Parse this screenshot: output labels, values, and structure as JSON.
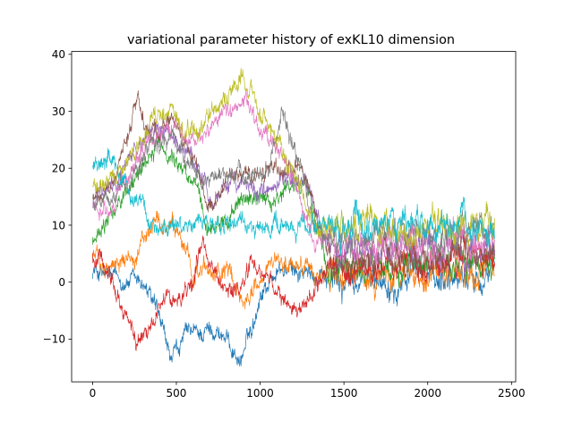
{
  "chart_data": {
    "type": "line",
    "title": "variational parameter history of exKL10 dimension",
    "xlabel": "",
    "ylabel": "",
    "xlim": [
      -125,
      2525
    ],
    "ylim": [
      -17.5,
      40.5
    ],
    "xticks": [
      0,
      500,
      1000,
      1500,
      2000,
      2500
    ],
    "yticks": [
      -10,
      0,
      10,
      20,
      30,
      40
    ],
    "grid": false,
    "legend": "none",
    "n_steps": 2400,
    "series": [
      {
        "color": "#1f77b4",
        "keypoints": [
          [
            0,
            2
          ],
          [
            100,
            1
          ],
          [
            200,
            0
          ],
          [
            300,
            0
          ],
          [
            380,
            -5
          ],
          [
            470,
            -14
          ],
          [
            560,
            -9
          ],
          [
            650,
            -9
          ],
          [
            720,
            -8
          ],
          [
            800,
            -10
          ],
          [
            880,
            -14
          ],
          [
            960,
            -7
          ],
          [
            1000,
            -2
          ],
          [
            1100,
            2
          ],
          [
            1200,
            2
          ],
          [
            1300,
            1
          ],
          [
            1380,
            2
          ],
          [
            1450,
            0
          ],
          [
            1600,
            0
          ],
          [
            1800,
            1
          ],
          [
            2000,
            1
          ],
          [
            2200,
            1
          ],
          [
            2400,
            2
          ]
        ]
      },
      {
        "color": "#ff7f0e",
        "keypoints": [
          [
            0,
            5
          ],
          [
            80,
            3
          ],
          [
            150,
            3
          ],
          [
            250,
            5
          ],
          [
            320,
            8
          ],
          [
            400,
            10
          ],
          [
            480,
            9
          ],
          [
            560,
            5
          ],
          [
            600,
            2
          ],
          [
            700,
            2
          ],
          [
            800,
            2
          ],
          [
            900,
            -3
          ],
          [
            970,
            -1
          ],
          [
            1050,
            3
          ],
          [
            1150,
            3
          ],
          [
            1250,
            3
          ],
          [
            1320,
            2
          ],
          [
            1400,
            1
          ],
          [
            1600,
            1
          ],
          [
            1800,
            2
          ],
          [
            2000,
            2
          ],
          [
            2200,
            2
          ],
          [
            2400,
            1
          ]
        ]
      },
      {
        "color": "#2ca02c",
        "keypoints": [
          [
            0,
            7
          ],
          [
            80,
            10
          ],
          [
            200,
            15
          ],
          [
            300,
            21
          ],
          [
            380,
            24
          ],
          [
            450,
            23
          ],
          [
            550,
            20
          ],
          [
            620,
            17
          ],
          [
            680,
            9
          ],
          [
            750,
            10
          ],
          [
            900,
            14
          ],
          [
            1000,
            15
          ],
          [
            1100,
            14
          ],
          [
            1200,
            17
          ],
          [
            1270,
            18
          ],
          [
            1340,
            10
          ],
          [
            1400,
            3
          ],
          [
            1500,
            2
          ],
          [
            1700,
            3
          ],
          [
            1900,
            3
          ],
          [
            2100,
            3
          ],
          [
            2400,
            3
          ]
        ]
      },
      {
        "color": "#d62728",
        "keypoints": [
          [
            0,
            5
          ],
          [
            100,
            3
          ],
          [
            180,
            -5
          ],
          [
            260,
            -10
          ],
          [
            340,
            -8
          ],
          [
            400,
            -3
          ],
          [
            480,
            -3
          ],
          [
            550,
            -2
          ],
          [
            600,
            0
          ],
          [
            650,
            7
          ],
          [
            700,
            4
          ],
          [
            800,
            -2
          ],
          [
            880,
            -1
          ],
          [
            950,
            3
          ],
          [
            1000,
            2
          ],
          [
            1100,
            -2
          ],
          [
            1200,
            -5
          ],
          [
            1280,
            -4
          ],
          [
            1330,
            -1
          ],
          [
            1400,
            3
          ],
          [
            1600,
            3
          ],
          [
            1800,
            4
          ],
          [
            2000,
            3
          ],
          [
            2200,
            4
          ],
          [
            2400,
            4
          ]
        ]
      },
      {
        "color": "#9467bd",
        "keypoints": [
          [
            0,
            14
          ],
          [
            100,
            16
          ],
          [
            200,
            20
          ],
          [
            300,
            25
          ],
          [
            380,
            27
          ],
          [
            450,
            26
          ],
          [
            520,
            24
          ],
          [
            580,
            22
          ],
          [
            650,
            18
          ],
          [
            720,
            14
          ],
          [
            800,
            18
          ],
          [
            880,
            17
          ],
          [
            960,
            16
          ],
          [
            1050,
            16
          ],
          [
            1150,
            18
          ],
          [
            1250,
            19
          ],
          [
            1330,
            13
          ],
          [
            1400,
            6
          ],
          [
            1600,
            6
          ],
          [
            1800,
            5
          ],
          [
            2000,
            6
          ],
          [
            2200,
            5
          ],
          [
            2400,
            5
          ]
        ]
      },
      {
        "color": "#8c564b",
        "keypoints": [
          [
            0,
            15
          ],
          [
            100,
            16
          ],
          [
            200,
            25
          ],
          [
            270,
            32
          ],
          [
            320,
            26
          ],
          [
            370,
            28
          ],
          [
            430,
            28
          ],
          [
            500,
            28
          ],
          [
            560,
            25
          ],
          [
            620,
            20
          ],
          [
            680,
            14
          ],
          [
            750,
            15
          ],
          [
            820,
            20
          ],
          [
            880,
            19
          ],
          [
            950,
            18
          ],
          [
            1050,
            20
          ],
          [
            1150,
            19
          ],
          [
            1230,
            21
          ],
          [
            1300,
            17
          ],
          [
            1360,
            9
          ],
          [
            1420,
            4
          ],
          [
            1600,
            4
          ],
          [
            1800,
            4
          ],
          [
            2000,
            4
          ],
          [
            2200,
            5
          ],
          [
            2400,
            5
          ]
        ]
      },
      {
        "color": "#e377c2",
        "keypoints": [
          [
            0,
            13
          ],
          [
            100,
            13
          ],
          [
            200,
            18
          ],
          [
            280,
            22
          ],
          [
            340,
            25
          ],
          [
            420,
            27
          ],
          [
            500,
            28
          ],
          [
            560,
            26
          ],
          [
            620,
            25
          ],
          [
            700,
            27
          ],
          [
            780,
            30
          ],
          [
            850,
            31
          ],
          [
            900,
            33
          ],
          [
            950,
            30
          ],
          [
            1000,
            26
          ],
          [
            1100,
            24
          ],
          [
            1200,
            17
          ],
          [
            1250,
            15
          ],
          [
            1290,
            10
          ],
          [
            1330,
            6
          ],
          [
            1400,
            7
          ],
          [
            1600,
            7
          ],
          [
            1800,
            6
          ],
          [
            2000,
            7
          ],
          [
            2200,
            7
          ],
          [
            2400,
            7
          ]
        ]
      },
      {
        "color": "#7f7f7f",
        "keypoints": [
          [
            0,
            14
          ],
          [
            100,
            15
          ],
          [
            200,
            17
          ],
          [
            280,
            20
          ],
          [
            350,
            24
          ],
          [
            430,
            25
          ],
          [
            520,
            23
          ],
          [
            600,
            20
          ],
          [
            660,
            18
          ],
          [
            740,
            19
          ],
          [
            820,
            20
          ],
          [
            900,
            19
          ],
          [
            980,
            18
          ],
          [
            1050,
            20
          ],
          [
            1100,
            26
          ],
          [
            1130,
            31
          ],
          [
            1180,
            25
          ],
          [
            1250,
            19
          ],
          [
            1320,
            10
          ],
          [
            1400,
            8
          ],
          [
            1600,
            8
          ],
          [
            1800,
            9
          ],
          [
            2000,
            8
          ],
          [
            2200,
            9
          ],
          [
            2400,
            9
          ]
        ]
      },
      {
        "color": "#bcbd22",
        "keypoints": [
          [
            0,
            17
          ],
          [
            100,
            18
          ],
          [
            200,
            21
          ],
          [
            280,
            24
          ],
          [
            350,
            28
          ],
          [
            430,
            30
          ],
          [
            500,
            28
          ],
          [
            580,
            26
          ],
          [
            650,
            27
          ],
          [
            730,
            30
          ],
          [
            800,
            32
          ],
          [
            880,
            37
          ],
          [
            950,
            33
          ],
          [
            1000,
            29
          ],
          [
            1100,
            26
          ],
          [
            1150,
            22
          ],
          [
            1230,
            18
          ],
          [
            1290,
            12
          ],
          [
            1350,
            9
          ],
          [
            1400,
            9
          ],
          [
            1600,
            10
          ],
          [
            1800,
            9
          ],
          [
            2000,
            10
          ],
          [
            2200,
            10
          ],
          [
            2400,
            10
          ]
        ]
      },
      {
        "color": "#17becf",
        "keypoints": [
          [
            0,
            20
          ],
          [
            50,
            20
          ],
          [
            100,
            22
          ],
          [
            160,
            18
          ],
          [
            230,
            15
          ],
          [
            300,
            14
          ],
          [
            360,
            10
          ],
          [
            420,
            10
          ],
          [
            500,
            10
          ],
          [
            600,
            10
          ],
          [
            700,
            10
          ],
          [
            800,
            10
          ],
          [
            900,
            10
          ],
          [
            1000,
            10
          ],
          [
            1100,
            10
          ],
          [
            1200,
            10
          ],
          [
            1300,
            10
          ],
          [
            1400,
            10
          ],
          [
            1600,
            10
          ],
          [
            1800,
            10
          ],
          [
            2000,
            10
          ],
          [
            2200,
            10
          ],
          [
            2400,
            10
          ]
        ]
      }
    ]
  }
}
